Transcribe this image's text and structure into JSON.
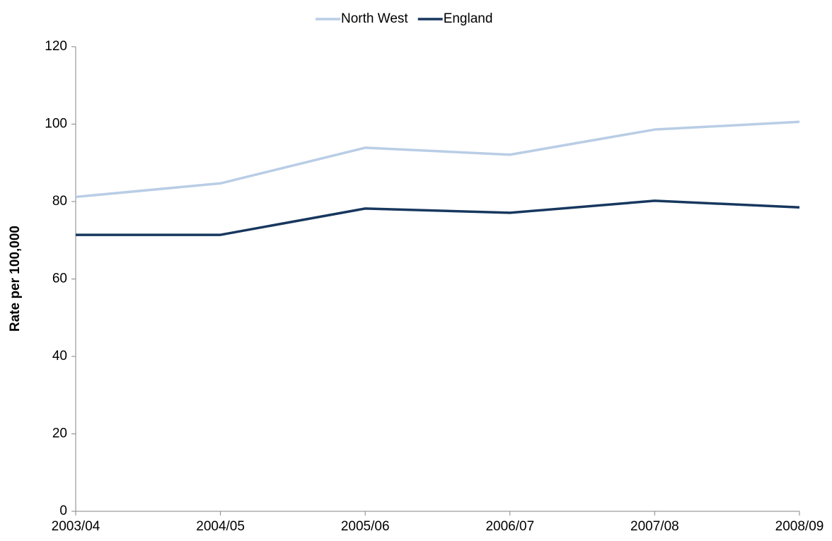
{
  "chart_data": {
    "type": "line",
    "y_label": "Rate per 100,000",
    "categories": [
      "2003/04",
      "2004/05",
      "2005/06",
      "2006/07",
      "2007/08",
      "2008/09"
    ],
    "series": [
      {
        "name": "North West",
        "color": "#b9cde5",
        "values": [
          81.2,
          84.7,
          93.9,
          92.1,
          98.6,
          100.6
        ]
      },
      {
        "name": "England",
        "color": "#17375e",
        "values": [
          71.4,
          71.4,
          78.2,
          77.1,
          80.2,
          78.5
        ]
      }
    ],
    "ylim": [
      0,
      120
    ],
    "yticks": [
      0,
      20,
      40,
      60,
      80,
      100,
      120
    ],
    "grid": false,
    "legend": "top"
  }
}
